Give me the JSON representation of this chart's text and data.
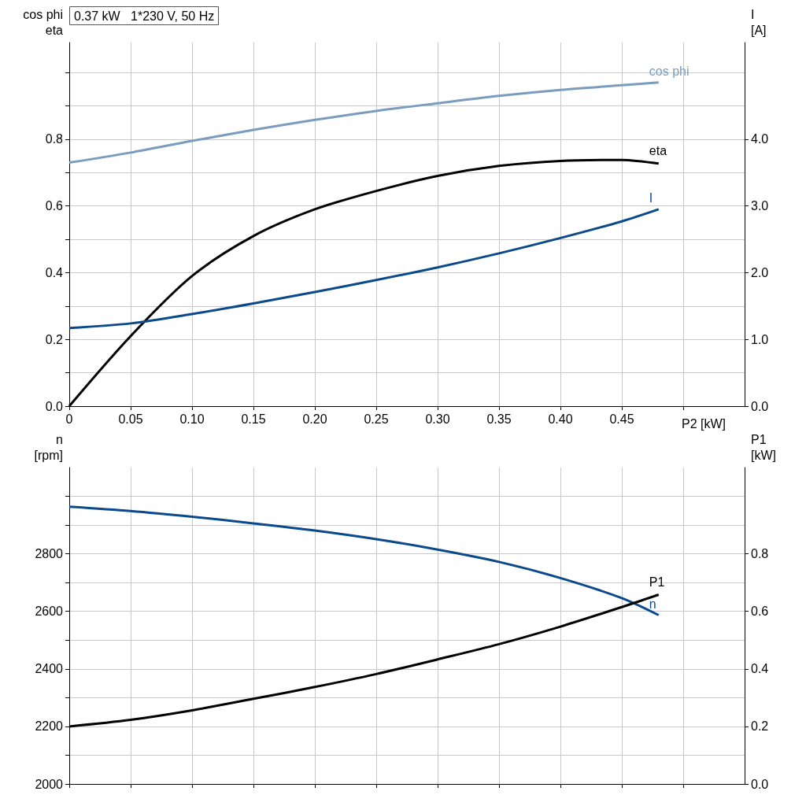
{
  "chart_data": [
    {
      "type": "line",
      "title": "0.37 kW   1*230 V, 50 Hz",
      "xlabel": "P2 [kW]",
      "ylabel": "cos phi\neta",
      "y2label": "I\n[A]",
      "grid": true,
      "x": [
        0,
        0.05,
        0.1,
        0.15,
        0.2,
        0.25,
        0.3,
        0.35,
        0.4,
        0.45,
        0.48
      ],
      "xlim": [
        0,
        0.55
      ],
      "xticks": [
        {
          "value": 0,
          "label": "0"
        },
        {
          "value": 0.05,
          "label": "0.05"
        },
        {
          "value": 0.1,
          "label": "0.10"
        },
        {
          "value": 0.15,
          "label": "0.15"
        },
        {
          "value": 0.2,
          "label": "0.20"
        },
        {
          "value": 0.25,
          "label": "0.25"
        },
        {
          "value": 0.3,
          "label": "0.30"
        },
        {
          "value": 0.35,
          "label": "0.35"
        },
        {
          "value": 0.4,
          "label": "0.40"
        },
        {
          "value": 0.45,
          "label": "0.45"
        },
        {
          "value": 0.5,
          "label": null
        }
      ],
      "ylim": [
        0,
        1.09
      ],
      "yticks": [
        {
          "value": 0,
          "label": "0.0"
        },
        {
          "value": 0.1,
          "label": null
        },
        {
          "value": 0.2,
          "label": "0.2"
        },
        {
          "value": 0.3,
          "label": null
        },
        {
          "value": 0.4,
          "label": "0.4"
        },
        {
          "value": 0.5,
          "label": null
        },
        {
          "value": 0.6,
          "label": "0.6"
        },
        {
          "value": 0.7,
          "label": null
        },
        {
          "value": 0.8,
          "label": "0.8"
        },
        {
          "value": 0.9,
          "label": null
        },
        {
          "value": 1.0,
          "label": null
        }
      ],
      "y2lim": [
        0,
        5.45
      ],
      "y2ticks": [
        {
          "value": 0,
          "label": "0.0"
        },
        {
          "value": 1,
          "label": "1.0"
        },
        {
          "value": 2,
          "label": "2.0"
        },
        {
          "value": 3,
          "label": "3.0"
        },
        {
          "value": 4,
          "label": "4.0"
        }
      ],
      "series": [
        {
          "name": "cos phi",
          "color": "#7a9cbf",
          "values": [
            0.73,
            0.76,
            0.795,
            0.828,
            0.858,
            0.885,
            0.908,
            0.93,
            0.948,
            0.962,
            0.97
          ]
        },
        {
          "name": "eta",
          "color": "#000000",
          "values": [
            0,
            0.21,
            0.39,
            0.51,
            0.59,
            0.645,
            0.69,
            0.72,
            0.735,
            0.738,
            0.727
          ]
        },
        {
          "name": "I",
          "color": "#0a4a8a",
          "axis": "y2",
          "values": [
            1.17,
            1.24,
            1.38,
            1.54,
            1.71,
            1.89,
            2.08,
            2.29,
            2.52,
            2.77,
            2.95
          ]
        }
      ]
    },
    {
      "type": "line",
      "ylabel": "n\n[rpm]",
      "y2label": "P1\n[kW]",
      "grid": true,
      "tick_labels": "y",
      "x": [
        0,
        0.05,
        0.1,
        0.15,
        0.2,
        0.25,
        0.3,
        0.35,
        0.4,
        0.45,
        0.48
      ],
      "xlim": [
        0,
        0.55
      ],
      "xticks": [
        0,
        0.05,
        0.1,
        0.15,
        0.2,
        0.25,
        0.3,
        0.35,
        0.4,
        0.45,
        0.5
      ],
      "ylim": [
        2000,
        3100
      ],
      "yticks": [
        2000,
        {
          "value": 2100,
          "label": null
        },
        2200,
        {
          "value": 2300,
          "label": null
        },
        2400,
        {
          "value": 2500,
          "label": null
        },
        2600,
        {
          "value": 2700,
          "label": null
        },
        2800,
        {
          "value": 2900,
          "label": null
        },
        {
          "value": 3000,
          "label": null
        }
      ],
      "y2lim": [
        0,
        1.1
      ],
      "y2ticks": [
        {
          "value": 0,
          "label": "0.0"
        },
        {
          "value": 0.2,
          "label": "0.2"
        },
        {
          "value": 0.4,
          "label": "0.4"
        },
        {
          "value": 0.6,
          "label": "0.6"
        },
        {
          "value": 0.8,
          "label": "0.8"
        }
      ],
      "series": [
        {
          "name": "n",
          "color": "#0a4a8a",
          "values": [
            2964,
            2949,
            2929,
            2906,
            2881,
            2851,
            2815,
            2772,
            2716,
            2646,
            2587
          ]
        },
        {
          "name": "P1",
          "color": "#000000",
          "axis": "y2",
          "values": [
            0.2,
            0.223,
            0.256,
            0.296,
            0.337,
            0.382,
            0.433,
            0.486,
            0.547,
            0.615,
            0.658
          ]
        }
      ]
    }
  ]
}
